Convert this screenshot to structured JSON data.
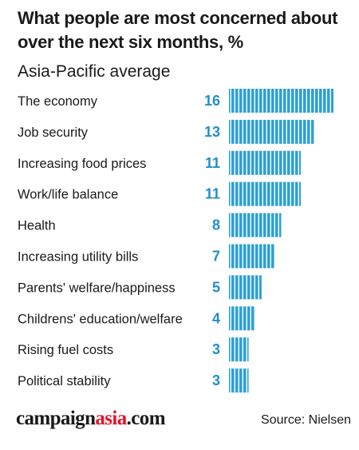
{
  "chart_data": {
    "type": "bar",
    "orientation": "horizontal",
    "title": "What people are most concerned about over the next six months, %",
    "subtitle": "Asia-Pacific average",
    "categories": [
      "The economy",
      "Job security",
      "Increasing food prices",
      "Work/life balance",
      "Health",
      "Increasing utility bills",
      "Parents' welfare/happiness",
      "Childrens' education/welfare",
      "Rising fuel costs",
      "Political stability"
    ],
    "values": [
      16,
      13,
      11,
      11,
      8,
      7,
      5,
      4,
      3,
      3
    ],
    "value_labels": [
      "16",
      "13",
      "11",
      "11",
      "8",
      "7",
      "5",
      "4",
      "3",
      "3"
    ],
    "xlim": [
      0,
      16
    ],
    "grid": false,
    "colors": {
      "bar": "#2ea0d8",
      "value_text": "#1f8fcb",
      "category_text": "#1a1a1a"
    }
  },
  "footer": {
    "logo_part1": "campaign",
    "logo_part2": "asia",
    "logo_part3": ".com",
    "source": "Source: Nielsen"
  }
}
